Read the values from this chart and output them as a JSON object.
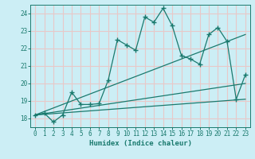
{
  "title": "",
  "xlabel": "Humidex (Indice chaleur)",
  "bg_color": "#cceef5",
  "grid_color": "#e8c8c8",
  "line_color": "#1a7a6e",
  "xlim": [
    -0.5,
    23.5
  ],
  "ylim": [
    17.5,
    24.5
  ],
  "xticks": [
    0,
    1,
    2,
    3,
    4,
    5,
    6,
    7,
    8,
    9,
    10,
    11,
    12,
    13,
    14,
    15,
    16,
    17,
    18,
    19,
    20,
    21,
    22,
    23
  ],
  "yticks": [
    18,
    19,
    20,
    21,
    22,
    23,
    24
  ],
  "curve1_x": [
    0,
    1,
    2,
    3,
    4,
    5,
    6,
    7,
    8,
    9,
    10,
    11,
    12,
    13,
    14,
    15,
    16,
    17,
    18,
    19,
    20,
    21,
    22,
    23
  ],
  "curve1_y": [
    18.2,
    18.3,
    17.8,
    18.2,
    19.5,
    18.8,
    18.8,
    18.85,
    20.2,
    22.5,
    22.2,
    21.9,
    23.8,
    23.5,
    24.3,
    23.3,
    21.6,
    21.4,
    21.1,
    22.8,
    23.2,
    22.4,
    19.1,
    20.5
  ],
  "trend1_x": [
    0,
    23
  ],
  "trend1_y": [
    18.2,
    19.1
  ],
  "trend2_x": [
    0,
    23
  ],
  "trend2_y": [
    18.2,
    20.0
  ],
  "trend3_x": [
    0,
    23
  ],
  "trend3_y": [
    18.2,
    22.8
  ]
}
